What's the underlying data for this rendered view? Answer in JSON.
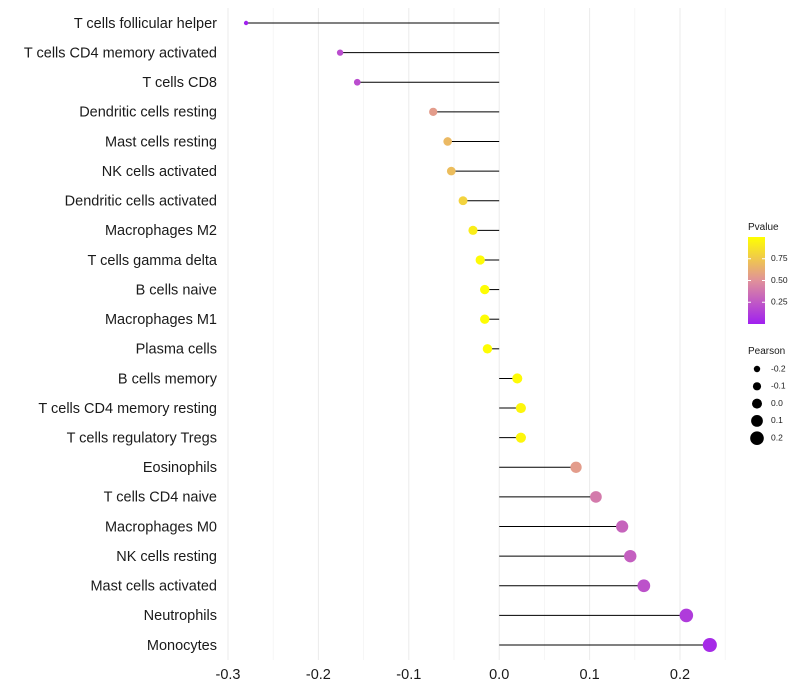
{
  "chart_data": {
    "type": "lollipop",
    "title": "",
    "xlabel": "",
    "ylabel": "",
    "xlim": [
      -0.3,
      0.25
    ],
    "x_ticks": [
      -0.3,
      -0.2,
      -0.1,
      0.0,
      0.1,
      0.2
    ],
    "x_tick_labels": [
      "-0.3",
      "-0.2",
      "-0.1",
      "0.0",
      "0.1",
      "0.2"
    ],
    "grid": true,
    "categories": [
      "T cells follicular helper",
      "T cells CD4 memory activated",
      "T cells CD8",
      "Dendritic cells resting",
      "Mast cells resting",
      "NK cells activated",
      "Dendritic cells activated",
      "Macrophages M2",
      "T cells gamma delta",
      "B cells naive",
      "Macrophages M1",
      "Plasma cells",
      "B cells memory",
      "T cells CD4 memory resting",
      "T cells regulatory  Tregs",
      "Eosinophils",
      "T cells CD4 naive",
      "Macrophages M0",
      "NK cells resting",
      "Mast cells activated",
      "Neutrophils",
      "Monocytes"
    ],
    "pearson": [
      -0.28,
      -0.176,
      -0.157,
      -0.073,
      -0.057,
      -0.053,
      -0.04,
      -0.029,
      -0.021,
      -0.016,
      -0.016,
      -0.013,
      0.02,
      0.024,
      0.024,
      0.085,
      0.107,
      0.136,
      0.145,
      0.16,
      0.207,
      0.233
    ],
    "pvalue": [
      0.01,
      0.2,
      0.2,
      0.55,
      0.68,
      0.7,
      0.8,
      0.92,
      0.98,
      0.99,
      0.99,
      0.99,
      0.98,
      0.96,
      0.96,
      0.55,
      0.4,
      0.3,
      0.28,
      0.22,
      0.12,
      0.05
    ],
    "legend": {
      "pvalue": {
        "title": "Pvalue",
        "ticks": [
          0.25,
          0.5,
          0.75
        ],
        "tick_labels": [
          "0.25",
          "0.50",
          "0.75"
        ],
        "range": [
          0.0,
          1.0
        ],
        "colors": {
          "low": "#a020f0",
          "mid": "#e0919a",
          "high": "#ffff00"
        }
      },
      "pearson": {
        "title": "Pearson",
        "values": [
          -0.2,
          -0.1,
          0.0,
          0.1,
          0.2
        ],
        "labels": [
          "-0.2",
          "-0.1",
          "0.0",
          "0.1",
          "0.2"
        ]
      },
      "position": "right"
    }
  }
}
